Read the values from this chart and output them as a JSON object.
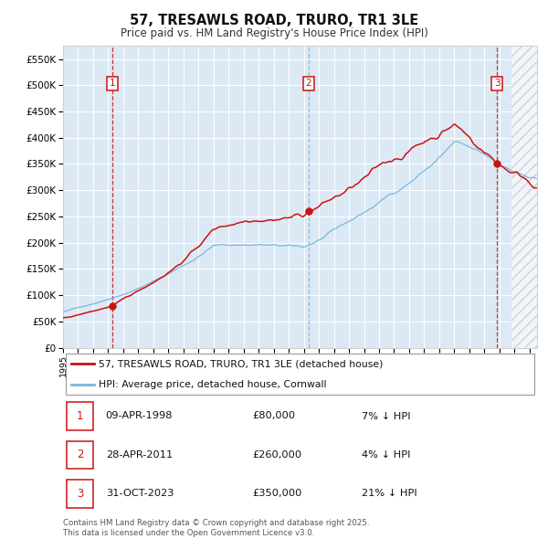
{
  "title": "57, TRESAWLS ROAD, TRURO, TR1 3LE",
  "subtitle": "Price paid vs. HM Land Registry's House Price Index (HPI)",
  "background_color": "#dce9f5",
  "plot_bg_color": "#dce9f5",
  "red_line_label": "57, TRESAWLS ROAD, TRURO, TR1 3LE (detached house)",
  "blue_line_label": "HPI: Average price, detached house, Cornwall",
  "footer": "Contains HM Land Registry data © Crown copyright and database right 2025.\nThis data is licensed under the Open Government Licence v3.0.",
  "transactions": [
    {
      "num": 1,
      "date": "09-APR-1998",
      "price": 80000,
      "hpi_pct": "7% ↓ HPI",
      "x": 1998.27
    },
    {
      "num": 2,
      "date": "28-APR-2011",
      "price": 260000,
      "hpi_pct": "4% ↓ HPI",
      "x": 2011.32
    },
    {
      "num": 3,
      "date": "31-OCT-2023",
      "price": 350000,
      "hpi_pct": "21% ↓ HPI",
      "x": 2023.83
    }
  ],
  "ylim": [
    0,
    575000
  ],
  "xlim_start": 1995.0,
  "xlim_end": 2026.5,
  "yticks": [
    0,
    50000,
    100000,
    150000,
    200000,
    250000,
    300000,
    350000,
    400000,
    450000,
    500000,
    550000
  ],
  "ytick_labels": [
    "£0",
    "£50K",
    "£100K",
    "£150K",
    "£200K",
    "£250K",
    "£300K",
    "£350K",
    "£400K",
    "£450K",
    "£500K",
    "£550K"
  ]
}
